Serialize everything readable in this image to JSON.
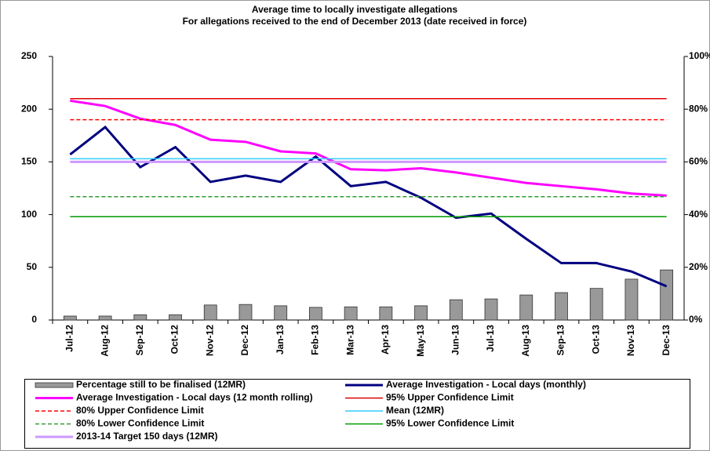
{
  "chart_data": {
    "type": "line",
    "title": "Average time to locally investigate allegations",
    "subtitle": "For allegations received to the end of December 2013 (date received in force)",
    "categories": [
      "Jul-12",
      "Aug-12",
      "Sep-12",
      "Oct-12",
      "Nov-12",
      "Dec-12",
      "Jan-13",
      "Feb-13",
      "Mar-13",
      "Apr-13",
      "May-13",
      "Jun-13",
      "Jul-13",
      "Aug-13",
      "Sep-13",
      "Oct-13",
      "Nov-13",
      "Dec-13"
    ],
    "ylim": [
      0,
      250
    ],
    "yticks": [
      0,
      50,
      100,
      150,
      200,
      250
    ],
    "y2lim": [
      0,
      100
    ],
    "y2ticks": [
      {
        "value": 0,
        "label": "0%"
      },
      {
        "value": 20,
        "label": "20%"
      },
      {
        "value": 40,
        "label": "40%"
      },
      {
        "value": 60,
        "label": "60%"
      },
      {
        "value": 80,
        "label": "80%"
      },
      {
        "value": 100,
        "label": "100%"
      }
    ],
    "series": [
      {
        "name": "Percentage still to be finalised (12MR)",
        "type": "bar",
        "axis": "y2",
        "color": "#999999",
        "values": [
          1.5,
          1.5,
          2,
          2,
          5.7,
          5.9,
          5.4,
          4.8,
          5,
          5,
          5.4,
          7.7,
          8,
          9.5,
          10.4,
          12,
          15.5,
          19
        ]
      },
      {
        "name": "Average Investigation - Local days (monthly)",
        "type": "line",
        "color": "#000080",
        "width": 3,
        "values": [
          157,
          183,
          145,
          164,
          131,
          137,
          131,
          155,
          127,
          131,
          116,
          97,
          101,
          77,
          54,
          54,
          46,
          32
        ]
      },
      {
        "name": "Average Investigation - Local days (12 month rolling)",
        "type": "line",
        "color": "#ff00ff",
        "width": 3,
        "values": [
          208,
          203,
          191,
          185,
          171,
          169,
          160,
          158,
          143,
          142,
          144,
          140,
          135,
          130,
          127,
          124,
          120,
          118
        ]
      },
      {
        "name": "95% Upper Confidence Limit",
        "type": "line",
        "color": "#dd0000",
        "width": 1.5,
        "values": [
          210,
          210,
          210,
          210,
          210,
          210,
          210,
          210,
          210,
          210,
          210,
          210,
          210,
          210,
          210,
          210,
          210,
          210
        ]
      },
      {
        "name": "80% Upper Confidence Limit",
        "type": "line",
        "color": "#ff0000",
        "width": 1.5,
        "dashed": true,
        "values": [
          190,
          190,
          190,
          190,
          190,
          190,
          190,
          190,
          190,
          190,
          190,
          190,
          190,
          190,
          190,
          190,
          190,
          190
        ]
      },
      {
        "name": "Mean (12MR)",
        "type": "line",
        "color": "#33ccff",
        "width": 1.5,
        "values": [
          153,
          153,
          153,
          153,
          153,
          153,
          153,
          153,
          153,
          153,
          153,
          153,
          153,
          153,
          153,
          153,
          153,
          153
        ]
      },
      {
        "name": "80% Lower Confidence Limit",
        "type": "line",
        "color": "#339933",
        "width": 1.5,
        "dashed": true,
        "values": [
          117,
          117,
          117,
          117,
          117,
          117,
          117,
          117,
          117,
          117,
          117,
          117,
          117,
          117,
          117,
          117,
          117,
          117
        ]
      },
      {
        "name": "95% Lower Confidence Limit",
        "type": "line",
        "color": "#009900",
        "width": 1.5,
        "values": [
          98,
          98,
          98,
          98,
          98,
          98,
          98,
          98,
          98,
          98,
          98,
          98,
          98,
          98,
          98,
          98,
          98,
          98
        ]
      },
      {
        "name": "2013-14 Target 150 days (12MR)",
        "type": "line",
        "color": "#cc99ff",
        "width": 3,
        "values": [
          150,
          150,
          150,
          150,
          150,
          150,
          150,
          150,
          150,
          150,
          150,
          150,
          150,
          150,
          150,
          150,
          150,
          150
        ]
      }
    ]
  }
}
